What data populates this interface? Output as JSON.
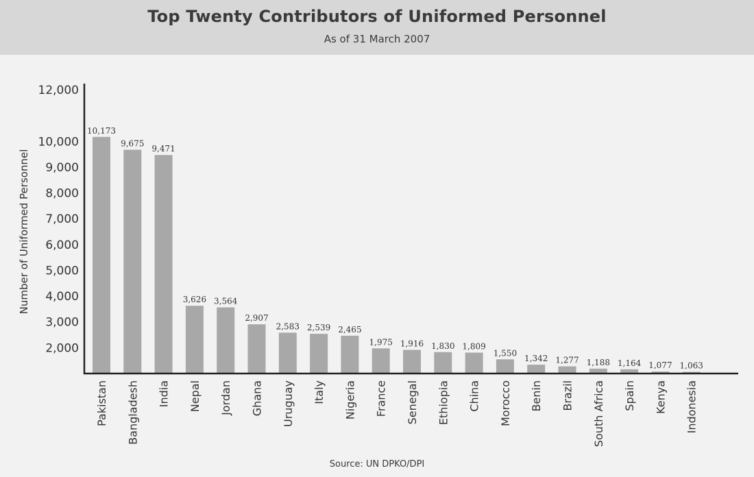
{
  "header": {
    "title": "Top Twenty Contributors of Uniformed Personnel",
    "subtitle": "As of 31 March 2007"
  },
  "source": "Source: UN DPKO/DPI",
  "colors": {
    "bar": "#a8a8a8",
    "axis": "#222222",
    "text": "#333333",
    "background": "#f2f2f2",
    "header_band": "#d7d7d7"
  },
  "chart_data": {
    "type": "bar",
    "title": "Top Twenty Contributors of Uniformed Personnel",
    "subtitle": "As of 31 March 2007",
    "xlabel": "",
    "ylabel": "Number of Uniformed Personnel",
    "ylim": [
      1000,
      12000
    ],
    "yticks": [
      2000,
      3000,
      4000,
      5000,
      6000,
      7000,
      8000,
      9000,
      10000,
      12000
    ],
    "ytick_labels": [
      "2,000",
      "3,000",
      "4,000",
      "5,000",
      "6,000",
      "7,000",
      "8,000",
      "9,000",
      "10,000",
      "12,000"
    ],
    "grid": false,
    "categories": [
      "Pakistan",
      "Bangladesh",
      "India",
      "Nepal",
      "Jordan",
      "Ghana",
      "Uruguay",
      "Italy",
      "Nigeria",
      "France",
      "Senegal",
      "Ethiopia",
      "China",
      "Morocco",
      "Benin",
      "Brazil",
      "South Africa",
      "Spain",
      "Kenya",
      "Indonesia"
    ],
    "values": [
      10173,
      9675,
      9471,
      3626,
      3564,
      2907,
      2583,
      2539,
      2465,
      1975,
      1916,
      1830,
      1809,
      1550,
      1342,
      1277,
      1188,
      1164,
      1077,
      1063
    ],
    "value_labels": [
      "10,173",
      "9,675",
      "9,471",
      "3,626",
      "3,564",
      "2,907",
      "2,583",
      "2,539",
      "2,465",
      "1,975",
      "1,916",
      "1,830",
      "1,809",
      "1,550",
      "1,342",
      "1,277",
      "1,188",
      "1,164",
      "1,077",
      "1,063"
    ]
  }
}
